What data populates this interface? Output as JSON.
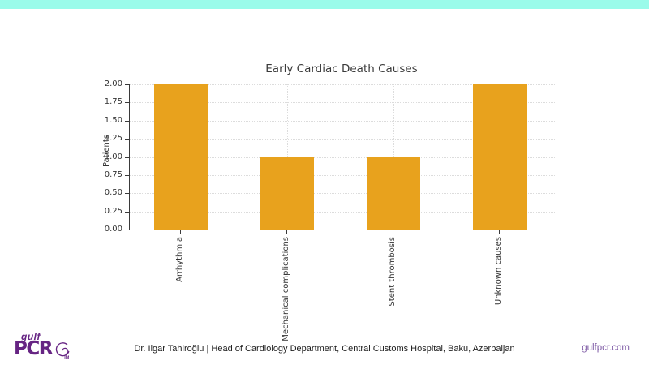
{
  "page": {
    "top_bar_color": "#9afbea"
  },
  "chart_data": {
    "type": "bar",
    "title": "Early Cardiac Death Causes",
    "xlabel": "",
    "ylabel": "Patients",
    "categories": [
      "Arrhythmia",
      "Mechanical complications",
      "Stent thrombosis",
      "Unknown causes"
    ],
    "values": [
      2,
      1,
      1,
      2
    ],
    "ylim": [
      0,
      2
    ],
    "ytick_step": 0.25,
    "ytick_labels": [
      "0.00",
      "0.25",
      "0.50",
      "0.75",
      "1.00",
      "1.25",
      "1.50",
      "1.75",
      "2.00"
    ],
    "bar_color": "#e8a21d",
    "grid": true,
    "grid_style": "dotted",
    "legend": "none"
  },
  "footer": {
    "logo": {
      "word_top": "gulf",
      "word_main": "PCR",
      "word_suffix": "IM",
      "color": "#662483"
    },
    "credit": "Dr. Ilgar Tahiroğlu | Head of Cardiology Department, Central Customs Hospital, Baku, Azerbaijan",
    "website": "gulfpcr.com",
    "website_color": "#7e5aa5"
  }
}
